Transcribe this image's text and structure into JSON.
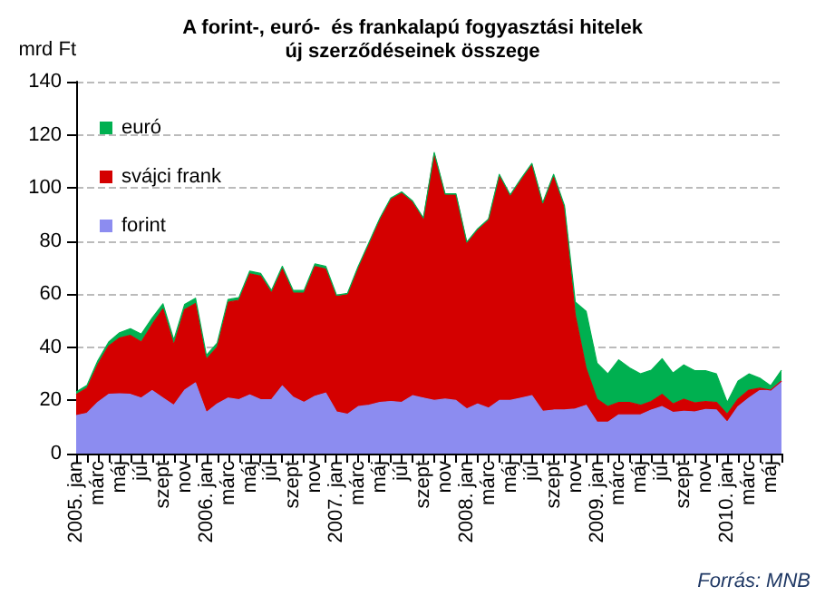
{
  "chart_data": {
    "type": "area",
    "stacked": true,
    "title": "A forint-, euró-  és frankalapú fogyasztási hitelek\núj szerződéseinek összege",
    "ylabel": "mrd Ft",
    "annotations": [
      "Forrás: MNB"
    ],
    "categories": [
      "2005. jan",
      null,
      "márc",
      null,
      "máj",
      null,
      "júl",
      null,
      "szept",
      null,
      "nov",
      null,
      "2006. jan",
      null,
      "márc",
      null,
      "máj",
      null,
      "júl",
      null,
      "szept",
      null,
      "nov",
      null,
      "2007. jan",
      null,
      "márc",
      null,
      "máj",
      null,
      "júl",
      null,
      "szept",
      null,
      "nov",
      null,
      "2008. jan",
      null,
      "márc",
      null,
      "máj",
      null,
      "júl",
      null,
      "szept",
      null,
      "nov",
      null,
      "2009. jan",
      null,
      "márc",
      null,
      "máj",
      null,
      "júl",
      null,
      "szept",
      null,
      "nov",
      null,
      "2010. jan",
      null,
      "márc",
      null,
      "máj",
      null
    ],
    "series": [
      {
        "name": "forint",
        "color": "#8c8cf0",
        "values": [
          14.3,
          15.2,
          19.3,
          22.3,
          22.5,
          22.3,
          20.9,
          23.7,
          20.9,
          18.2,
          23.9,
          26.6,
          15.5,
          18.7,
          20.9,
          20.3,
          22.1,
          20.3,
          20.3,
          25.5,
          21.2,
          19.3,
          21.6,
          22.8,
          15.7,
          14.8,
          17.7,
          18.2,
          19.3,
          19.6,
          19.3,
          21.8,
          20.9,
          20.0,
          20.5,
          20.0,
          16.8,
          18.7,
          17.1,
          20.0,
          20.0,
          20.9,
          21.8,
          15.9,
          16.4,
          16.4,
          16.8,
          18.2,
          11.8,
          11.8,
          14.6,
          14.6,
          14.6,
          16.4,
          17.7,
          15.5,
          15.9,
          15.7,
          16.6,
          16.4,
          11.8,
          17.7,
          20.9,
          23.7,
          23.9,
          27.3
        ]
      },
      {
        "name": "svájci frank",
        "color": "#d40000",
        "values": [
          7.9,
          9.5,
          14.2,
          18.2,
          21.0,
          22.2,
          21.1,
          24.8,
          33.5,
          22.6,
          30.3,
          29.9,
          20.0,
          21.4,
          36.1,
          37.4,
          45.6,
          46.5,
          40.1,
          44.0,
          39.2,
          41.1,
          48.8,
          46.7,
          43.4,
          45.0,
          52.3,
          60.9,
          68.9,
          76.1,
          78.7,
          72.8,
          67.3,
          92.8,
          76.8,
          77.3,
          62.3,
          65.4,
          70.7,
          84.6,
          76.9,
          82.1,
          86.9,
          78.0,
          88.2,
          75.9,
          35.2,
          13.8,
          8.7,
          5.9,
          4.7,
          4.7,
          3.6,
          3.2,
          4.6,
          3.2,
          4.6,
          3.4,
          3.0,
          2.9,
          3.0,
          2.8,
          3.0,
          0.9,
          0,
          0
        ]
      },
      {
        "name": "euró",
        "color": "#00b050",
        "values": [
          1,
          1,
          1.5,
          1.5,
          2,
          2.5,
          3,
          2.5,
          2,
          2,
          2,
          2,
          1.5,
          1.5,
          1,
          1,
          1,
          1,
          1,
          1,
          1,
          1,
          1,
          1,
          0.5,
          0.5,
          0.5,
          0.5,
          0.5,
          0.5,
          0.5,
          0.5,
          0.5,
          0.5,
          0.5,
          0.5,
          0.5,
          0.5,
          0.5,
          0.5,
          0.5,
          0.5,
          0.5,
          0.5,
          0.5,
          1,
          5,
          21.5,
          13.6,
          12.3,
          16,
          13,
          11.8,
          11.8,
          13.4,
          11.6,
          12.9,
          12.1,
          11.6,
          10.7,
          4.5,
          6.8,
          6.1,
          3.8,
          1.6,
          4.1
        ]
      }
    ],
    "ylim": [
      0,
      140
    ],
    "yticks": [
      0,
      20,
      40,
      60,
      80,
      100,
      120,
      140
    ],
    "grid": "y",
    "legend": "top left",
    "marker": "none"
  }
}
